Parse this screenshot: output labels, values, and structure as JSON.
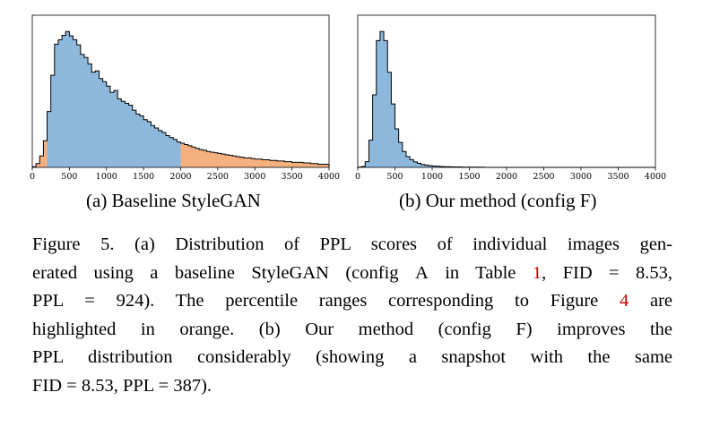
{
  "chart_data": [
    {
      "type": "bar",
      "subcaption": "(a) Baseline StyleGAN",
      "xlim": [
        0,
        4000
      ],
      "xticks": [
        "0",
        "500",
        "1000",
        "1500",
        "2000",
        "2500",
        "3000",
        "3500",
        "4000"
      ],
      "bin_width": 50,
      "y_axis_labels": false,
      "highlight_color": "#f5b07f",
      "main_color": "#8db8dc",
      "highlight_ranges": [
        [
          0,
          200
        ],
        [
          2000,
          4000
        ]
      ],
      "values": [
        1,
        6,
        18,
        42,
        88,
        145,
        194,
        201,
        208,
        214,
        207,
        201,
        193,
        178,
        173,
        163,
        150,
        152,
        140,
        135,
        128,
        118,
        121,
        108,
        104,
        101,
        98,
        90,
        84,
        81,
        75,
        72,
        66,
        62,
        58,
        55,
        50,
        47,
        44,
        40,
        38,
        36,
        34,
        32,
        30,
        28,
        27,
        25,
        24,
        23,
        22,
        21,
        20,
        19,
        18,
        17,
        16,
        15,
        15,
        14,
        13,
        13,
        12,
        12,
        11,
        11,
        10,
        10,
        9,
        9,
        8,
        8,
        8,
        7,
        7,
        6,
        6,
        5,
        5,
        5
      ]
    },
    {
      "type": "bar",
      "subcaption": "(b) Our method (config F)",
      "xlim": [
        0,
        4000
      ],
      "xticks": [
        "0",
        "500",
        "1000",
        "1500",
        "2000",
        "2500",
        "3000",
        "3500",
        "4000"
      ],
      "bin_width": 50,
      "y_axis_labels": false,
      "main_color": "#8db8dc",
      "values": [
        1,
        4,
        25,
        120,
        320,
        560,
        600,
        560,
        420,
        280,
        170,
        110,
        70,
        48,
        34,
        24,
        18,
        13,
        10,
        8,
        6,
        5,
        4,
        3,
        3,
        2,
        2,
        2,
        1,
        1,
        1,
        1,
        1,
        1,
        0,
        0,
        0,
        0,
        0,
        0,
        0,
        0,
        0,
        0,
        0,
        0,
        0,
        0,
        0,
        0,
        0,
        0,
        0,
        0,
        0,
        0,
        0,
        0,
        0,
        0,
        0,
        0,
        0,
        0,
        0,
        0,
        0,
        0,
        0,
        0,
        0,
        0,
        0,
        0,
        0,
        0,
        0,
        0,
        0,
        0
      ]
    }
  ],
  "subcaptions": {
    "a": "(a) Baseline StyleGAN",
    "b_prefix": "(b) Our method (config ",
    "b_config": "F",
    "b_suffix": ")"
  },
  "caption": {
    "l1": "Figure 5.  (a) Distribution of PPL scores of individual images gen-",
    "l2_pre": "erated using a baseline StyleGAN (config ",
    "l2_sc": "A",
    "l2_mid": " in Table ",
    "l2_ref": "1",
    "l2_post": ", FID = 8.53,",
    "l3_pre": "PPL = 924).  The percentile ranges corresponding to Figure ",
    "l3_ref": "4",
    "l3_post": " are",
    "l4": "highlighted in orange.  (b) Our method (config ",
    "l4_sc": "F",
    "l4_post": ") improves the",
    "l5": "PPL distribution considerably (showing a snapshot with the same",
    "l6": "FID = 8.53, PPL = 387)."
  }
}
